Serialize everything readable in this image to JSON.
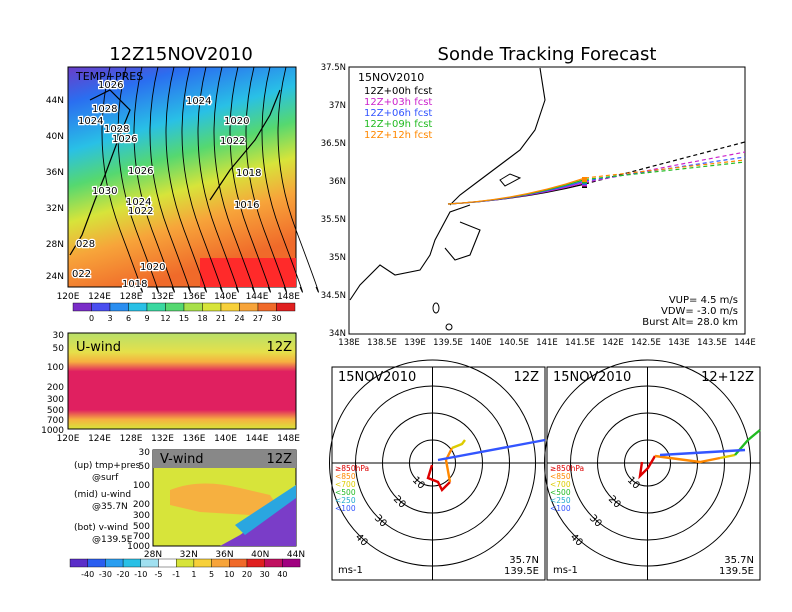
{
  "left_top": {
    "title": "12Z15NOV2010",
    "label": "TEMP+PRES",
    "x_ticks": [
      "120E",
      "124E",
      "128E",
      "132E",
      "136E",
      "140E",
      "144E",
      "148E"
    ],
    "y_ticks": [
      "44N",
      "40N",
      "36N",
      "32N",
      "28N",
      "24N"
    ],
    "isobars": [
      "1026",
      "1028",
      "1024",
      "1024",
      "1028",
      "1026",
      "1020",
      "1022",
      "1030",
      "1026",
      "1018",
      "1030",
      "1024",
      "1022",
      "1016",
      "028",
      "1020",
      "022",
      "1018"
    ],
    "colorbar_ticks": [
      "0",
      "3",
      "6",
      "9",
      "12",
      "15",
      "18",
      "21",
      "24",
      "27",
      "30"
    ]
  },
  "left_mid": {
    "label": "U-wind",
    "time": "12Z",
    "y_ticks": [
      "30",
      "50",
      "100",
      "200",
      "300",
      "500",
      "700",
      "1000"
    ],
    "x_ticks": [
      "120E",
      "124E",
      "128E",
      "132E",
      "136E",
      "140E",
      "144E",
      "148E"
    ]
  },
  "left_bot": {
    "label": "V-wind",
    "time": "12Z",
    "y_ticks": [
      "30",
      "50",
      "100",
      "200",
      "300",
      "500",
      "700",
      "1000"
    ],
    "x_ticks": [
      "28N",
      "32N",
      "36N",
      "40N",
      "44N"
    ],
    "colorbar_ticks": [
      "-40",
      "-30",
      "-20",
      "-10",
      "-5",
      "-1",
      "1",
      "5",
      "10",
      "20",
      "30",
      "40"
    ]
  },
  "legend_text": [
    {
      "a": "(up) tmp+pres",
      "b": "@surf"
    },
    {
      "a": "(mid) u-wind",
      "b": "@35.7N"
    },
    {
      "a": "(bot) v-wind",
      "b": "@139.5E"
    }
  ],
  "right_top": {
    "title": "Sonde Tracking Forecast",
    "date": "15NOV2010",
    "forecasts": [
      {
        "label": "12Z+00h  fcst",
        "color": "#000000"
      },
      {
        "label": "12Z+03h  fcst",
        "color": "#cc22cc"
      },
      {
        "label": "12Z+06h  fcst",
        "color": "#3355ff"
      },
      {
        "label": "12Z+09h  fcst",
        "color": "#22bb22"
      },
      {
        "label": "12Z+12h  fcst",
        "color": "#ff8800"
      }
    ],
    "y_ticks": [
      "37.5N",
      "37N",
      "36.5N",
      "36N",
      "35.5N",
      "35N",
      "34.5N",
      "34N"
    ],
    "x_ticks": [
      "138E",
      "138.5E",
      "139E",
      "139.5E",
      "140E",
      "140.5E",
      "141E",
      "141.5E",
      "142E",
      "142.5E",
      "143E",
      "143.5E",
      "144E"
    ],
    "info": [
      "VUP=  4.5  m/s",
      "VDW= -3.0  m/s",
      "Burst Alt=  28.0  km"
    ]
  },
  "hodographs": [
    {
      "date": "15NOV2010",
      "time": "12Z"
    },
    {
      "date": "15NOV2010",
      "time": "12+12Z"
    }
  ],
  "hodo_common": {
    "rings": [
      "10",
      "20",
      "30",
      "40"
    ],
    "levels": [
      {
        "label": "≥850hPa",
        "color": "#dd0000"
      },
      {
        "label": "<850",
        "color": "#ff8800"
      },
      {
        "label": "<700",
        "color": "#ddcc00"
      },
      {
        "label": "<500",
        "color": "#22bb22"
      },
      {
        "label": "<250",
        "color": "#22aacc"
      },
      {
        "label": "<100",
        "color": "#3355ff"
      }
    ],
    "unit": "ms-1",
    "lat": "35.7N",
    "lon": "139.5E"
  }
}
